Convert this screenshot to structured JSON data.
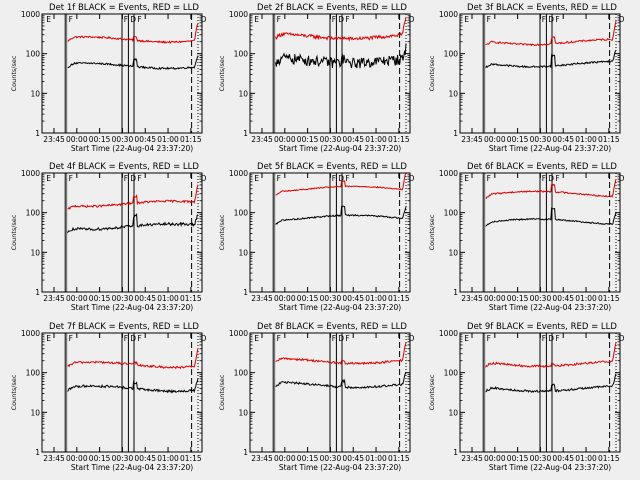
{
  "chart_data": {
    "type": "line",
    "scale": "log-y",
    "ylim": [
      1,
      1000
    ],
    "y_ticks": [
      "1",
      "10",
      "100",
      "1000"
    ],
    "x_ticks": [
      "23:45",
      "00:00",
      "00:15",
      "00:30",
      "00:45",
      "01:00",
      "01:15"
    ],
    "xlabel": "Start Time (22-Aug-04 23:37:20)",
    "ylabel": "Counts/sec",
    "legend": "BLACK = Events, RED = LLD",
    "colors": {
      "events": "#000000",
      "lld": "#e00000",
      "background": "#efefef"
    },
    "event_markers": [
      "E",
      "F",
      "F",
      "D",
      "F",
      "D"
    ],
    "panels": [
      {
        "title": "Det 1f BLACK = Events, RED = LLD",
        "events_level": 50,
        "lld_level": 230,
        "events_noise": 0.05,
        "lld_noise": 0.05,
        "spike": 1.5
      },
      {
        "title": "Det 2f BLACK = Events, RED = LLD",
        "events_level": 70,
        "lld_level": 280,
        "events_noise": 0.3,
        "lld_noise": 0.1,
        "spike": 1.3
      },
      {
        "title": "Det 3f BLACK = Events, RED = LLD",
        "events_level": 55,
        "lld_level": 200,
        "events_noise": 0.05,
        "lld_noise": 0.05,
        "spike": 1.8
      },
      {
        "title": "Det 4f BLACK = Events, RED = LLD",
        "events_level": 45,
        "lld_level": 170,
        "events_noise": 0.08,
        "lld_noise": 0.06,
        "spike": 1.8
      },
      {
        "title": "Det 5f BLACK = Events, RED = LLD",
        "events_level": 75,
        "lld_level": 400,
        "events_noise": 0.04,
        "lld_noise": 0.03,
        "spike": 1.7
      },
      {
        "title": "Det 6f BLACK = Events, RED = LLD",
        "events_level": 60,
        "lld_level": 300,
        "events_noise": 0.04,
        "lld_noise": 0.04,
        "spike": 1.9
      },
      {
        "title": "Det 7f BLACK = Events, RED = LLD",
        "events_level": 40,
        "lld_level": 160,
        "events_noise": 0.07,
        "lld_noise": 0.06,
        "spike": 1.4
      },
      {
        "title": "Det 8f BLACK = Events, RED = LLD",
        "events_level": 50,
        "lld_level": 200,
        "events_noise": 0.06,
        "lld_noise": 0.06,
        "spike": 1.4
      },
      {
        "title": "Det 9f BLACK = Events, RED = LLD",
        "events_level": 40,
        "lld_level": 170,
        "events_noise": 0.06,
        "lld_noise": 0.06,
        "spike": 1.4
      }
    ]
  }
}
